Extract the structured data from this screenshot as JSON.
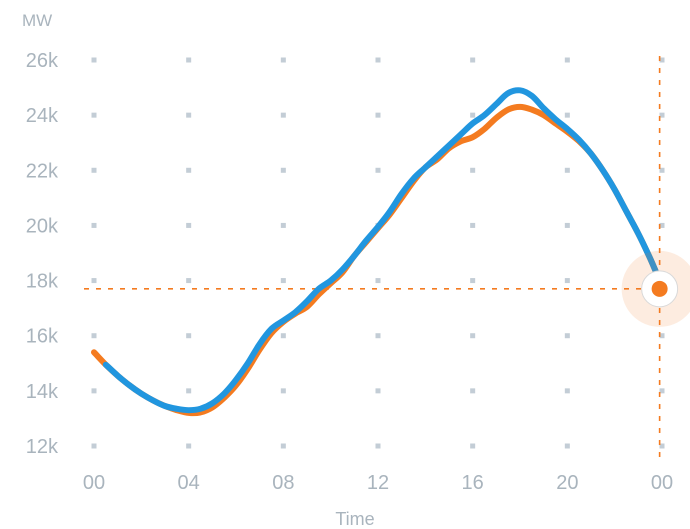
{
  "chart_data": {
    "type": "line",
    "title": "",
    "xlabel": "Time",
    "ylabel": "MW",
    "x_tick_labels": [
      "00",
      "04",
      "08",
      "12",
      "16",
      "20",
      "00"
    ],
    "x_tick_hours": [
      0,
      4,
      8,
      12,
      16,
      20,
      24
    ],
    "y_tick_labels": [
      "12k",
      "14k",
      "16k",
      "18k",
      "20k",
      "22k",
      "24k",
      "26k"
    ],
    "y_tick_values": [
      12000,
      14000,
      16000,
      18000,
      20000,
      22000,
      24000,
      26000
    ],
    "xlim": [
      0,
      24
    ],
    "ylim": [
      12000,
      26000
    ],
    "grid": "dots",
    "series": [
      {
        "color": "#f47b20",
        "x": [
          0,
          0.5,
          1,
          1.5,
          2,
          2.5,
          3,
          3.5,
          4,
          4.5,
          5,
          5.5,
          6,
          6.5,
          7,
          7.5,
          8,
          8.5,
          9,
          9.5,
          10,
          10.5,
          11,
          11.5,
          12,
          12.5,
          13,
          13.5,
          14,
          14.5,
          15,
          15.5,
          16,
          16.5,
          17,
          17.5,
          18,
          18.5,
          19,
          19.5,
          20,
          20.5,
          21,
          21.5,
          22,
          22.5,
          23,
          23.5,
          24
        ],
        "values": [
          15400,
          14950,
          14550,
          14200,
          13900,
          13650,
          13450,
          13300,
          13200,
          13220,
          13400,
          13750,
          14200,
          14800,
          15500,
          16100,
          16500,
          16800,
          17050,
          17500,
          17900,
          18300,
          18900,
          19400,
          19900,
          20400,
          21000,
          21600,
          22100,
          22400,
          22800,
          23050,
          23200,
          23500,
          23900,
          24200,
          24300,
          24200,
          24000,
          23700,
          23400,
          23050,
          22600,
          22000,
          21300,
          20500,
          19700,
          18800,
          17800
        ]
      },
      {
        "color": "#2196df",
        "x": [
          0.5,
          1,
          1.5,
          2,
          2.5,
          3,
          3.5,
          4,
          4.5,
          5,
          5.5,
          6,
          6.5,
          7,
          7.5,
          8,
          8.5,
          9,
          9.5,
          10,
          10.5,
          11,
          11.5,
          12,
          12.5,
          13,
          13.5,
          14,
          14.5,
          15,
          15.5,
          16,
          16.5,
          17,
          17.5,
          18,
          18.5,
          19,
          19.5,
          20,
          20.5,
          21,
          21.5,
          22,
          22.5,
          23,
          23.5,
          23.8
        ],
        "values": [
          14950,
          14550,
          14200,
          13900,
          13650,
          13450,
          13350,
          13300,
          13350,
          13550,
          13900,
          14400,
          15000,
          15700,
          16250,
          16550,
          16850,
          17250,
          17700,
          18000,
          18400,
          18900,
          19450,
          19950,
          20500,
          21150,
          21700,
          22100,
          22500,
          22900,
          23300,
          23700,
          24000,
          24400,
          24800,
          24900,
          24700,
          24250,
          23850,
          23500,
          23100,
          22600,
          22000,
          21300,
          20500,
          19700,
          18800,
          18200
        ]
      }
    ],
    "crosshair": {
      "x": 23.9,
      "y": 17700,
      "color": "#f47b20"
    }
  }
}
